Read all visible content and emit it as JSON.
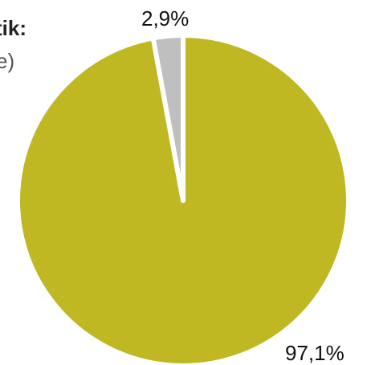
{
  "chart_data": {
    "type": "pie",
    "title": "tik:",
    "subtitle": "e)",
    "slices": [
      {
        "label": "97,1%",
        "value": 97.1,
        "color": "#bfb823"
      },
      {
        "label": "2,9%",
        "value": 2.9,
        "color": "#bfbfbf"
      }
    ],
    "start_angle_deg": 0,
    "direction": "clockwise",
    "legend": "none",
    "background": "#ffffff",
    "separator_color": "#ffffff"
  }
}
